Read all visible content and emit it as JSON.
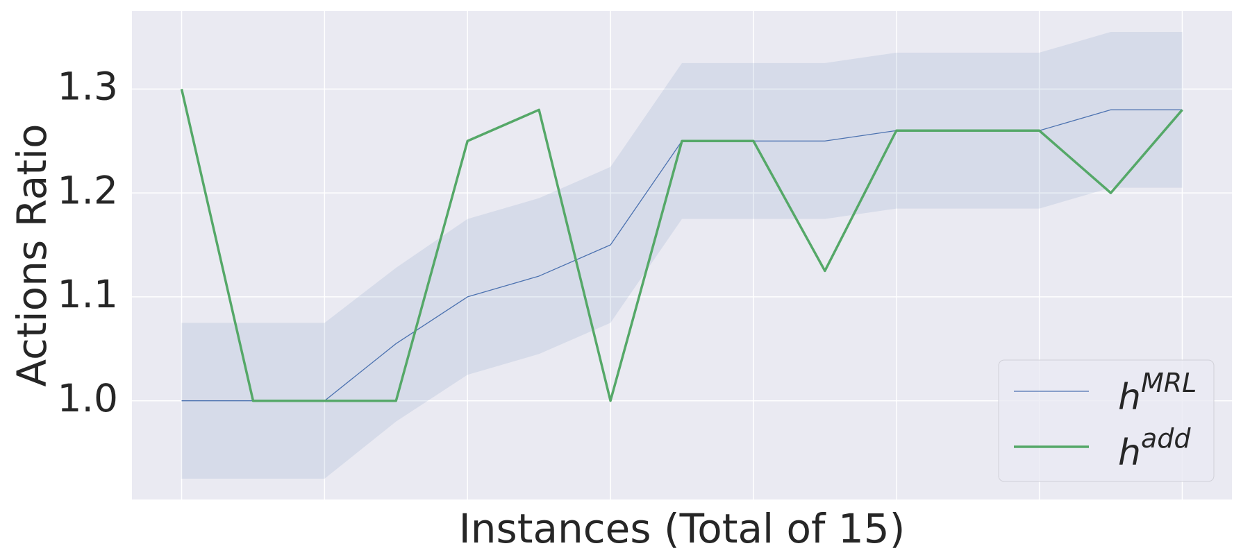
{
  "chart_data": {
    "type": "line",
    "x_label": "Instances (Total of 15)",
    "y_label": "Actions Ratio",
    "categories": [
      null,
      null,
      null,
      null,
      null,
      null,
      null,
      null,
      null,
      null,
      null,
      null,
      null,
      null,
      null
    ],
    "series": [
      {
        "name": "h",
        "name_superscript": "MRL",
        "color": "#4c72b0",
        "values": [
          1.0,
          1.0,
          1.0,
          1.055,
          1.1,
          1.12,
          1.15,
          1.25,
          1.25,
          1.25,
          1.26,
          1.26,
          1.26,
          1.28,
          1.28
        ],
        "band_lower": [
          0.925,
          0.925,
          0.925,
          0.98,
          1.025,
          1.045,
          1.075,
          1.175,
          1.175,
          1.175,
          1.185,
          1.185,
          1.185,
          1.205,
          1.205
        ],
        "band_upper": [
          1.075,
          1.075,
          1.075,
          1.128,
          1.175,
          1.195,
          1.225,
          1.325,
          1.325,
          1.325,
          1.335,
          1.335,
          1.335,
          1.355,
          1.355
        ]
      },
      {
        "name": "h",
        "name_superscript": "add",
        "color": "#55a868",
        "values": [
          1.3,
          1.0,
          1.0,
          1.0,
          1.25,
          1.28,
          1.0,
          1.25,
          1.25,
          1.125,
          1.26,
          1.26,
          1.26,
          1.2,
          1.28
        ]
      }
    ],
    "ylim": [
      0.905,
      1.375
    ],
    "yticks": [
      {
        "value": 1.0,
        "label": "1.0"
      },
      1.1,
      1.2,
      1.3
    ],
    "grid": true,
    "legend": "lower right"
  }
}
